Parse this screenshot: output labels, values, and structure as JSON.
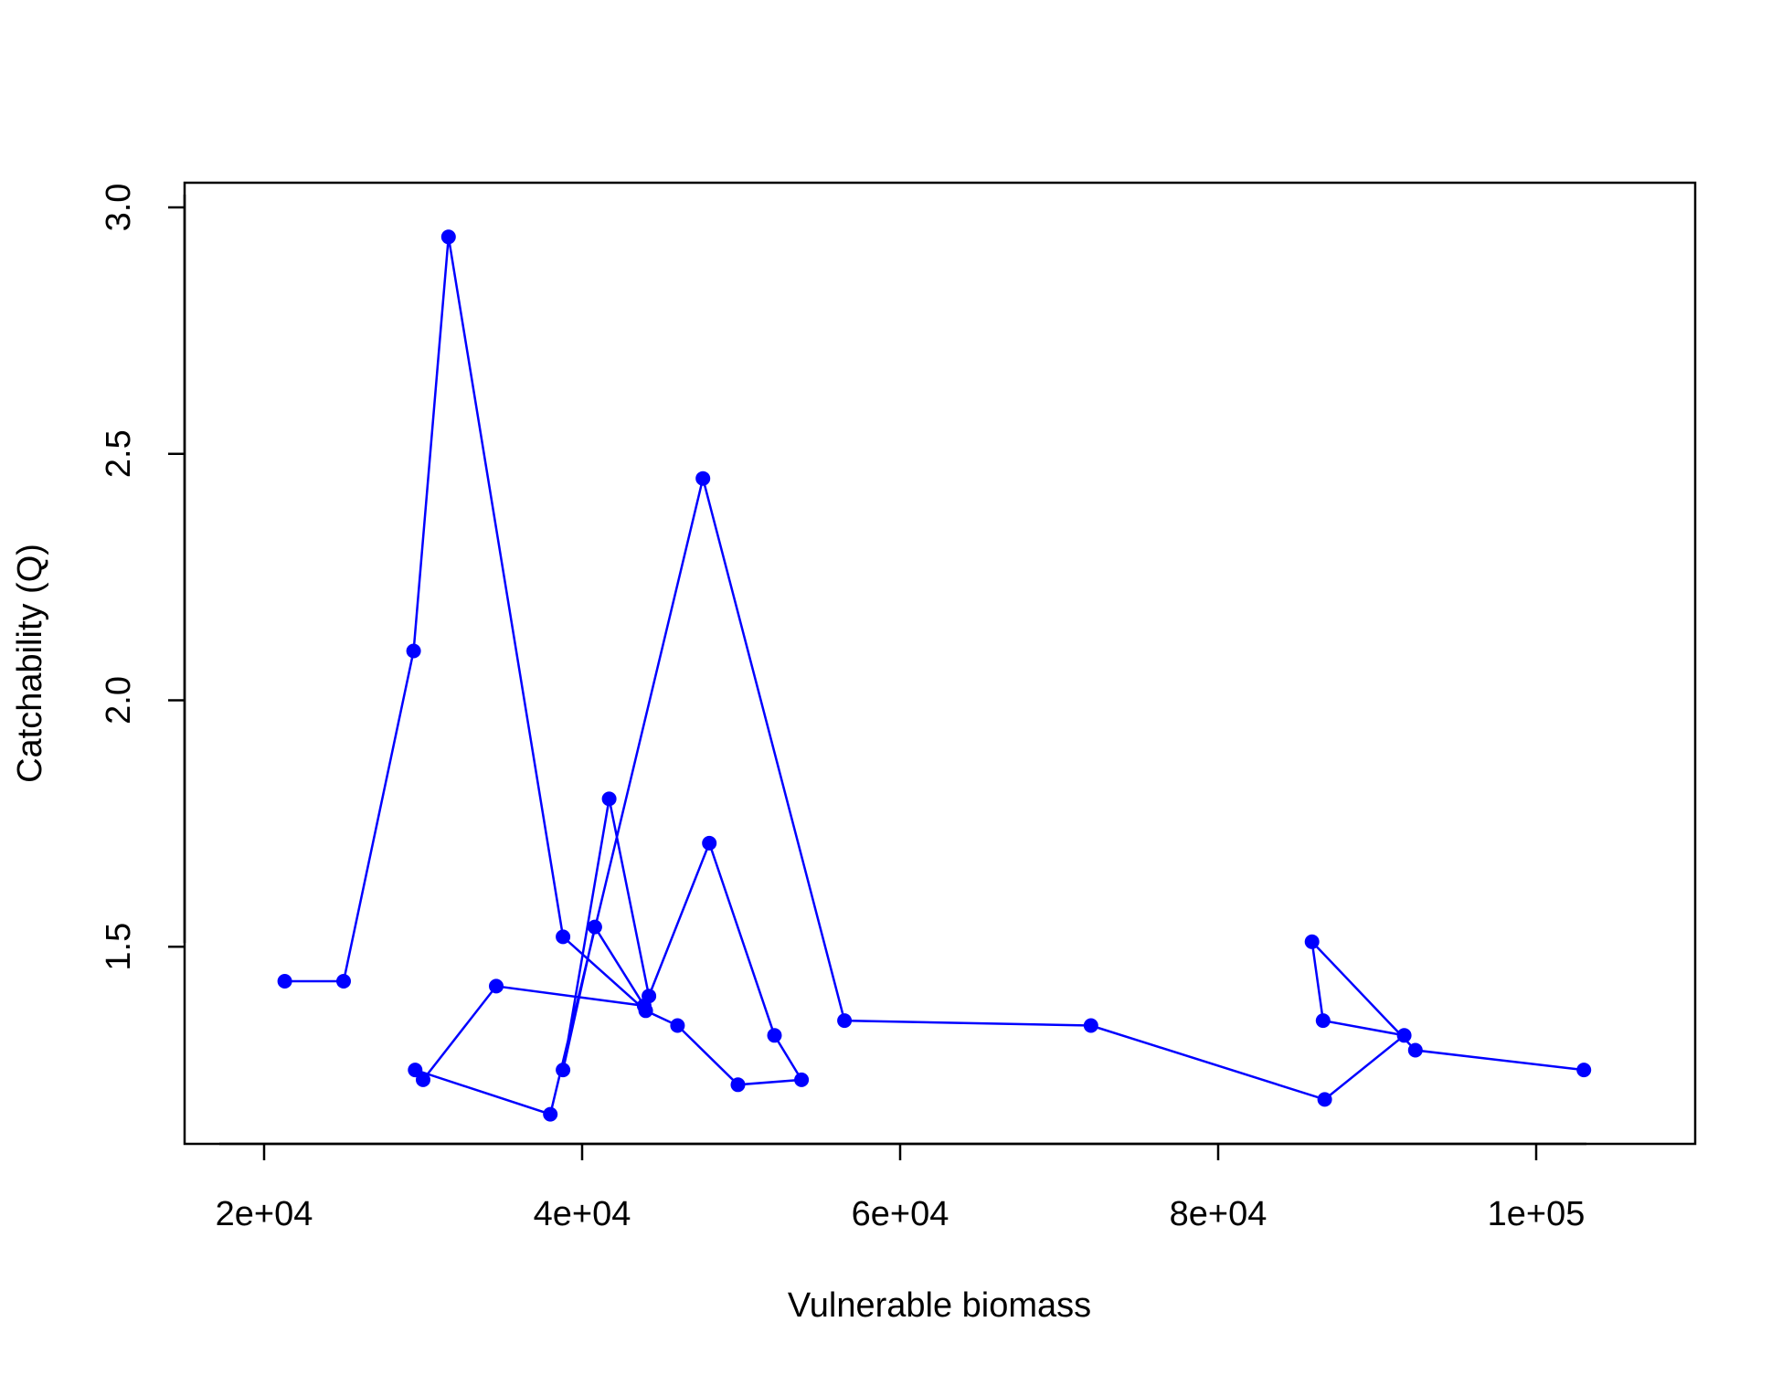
{
  "chart_data": {
    "type": "line",
    "title": "",
    "xlabel": "Vulnerable biomass",
    "ylabel": "Catchability (Q)",
    "xlim": [
      15000,
      110000
    ],
    "ylim": [
      1.1,
      3.05
    ],
    "xticks": [
      20000,
      40000,
      60000,
      80000,
      100000
    ],
    "xtick_labels": [
      "2e+04",
      "4e+04",
      "6e+04",
      "8e+04",
      "1e+05"
    ],
    "yticks": [
      1.5,
      2.0,
      2.5,
      3.0
    ],
    "ytick_labels": [
      "1.5",
      "2.0",
      "2.5",
      "3.0"
    ],
    "grid": false,
    "series": [
      {
        "color": "#0000ff",
        "marker": "filled-circle",
        "x": [
          21300,
          25000,
          29400,
          31600,
          38800,
          44000,
          46000,
          49800,
          53800,
          52100,
          48000,
          44200,
          41700,
          38800,
          40800,
          43900,
          34600,
          30000,
          29500,
          38000,
          47600,
          56500,
          72000,
          86700,
          91700,
          86600,
          85900,
          92400,
          103000
        ],
        "y": [
          1.43,
          1.43,
          2.1,
          2.94,
          1.52,
          1.37,
          1.34,
          1.22,
          1.23,
          1.32,
          1.71,
          1.4,
          1.8,
          1.25,
          1.54,
          1.38,
          1.42,
          1.23,
          1.25,
          1.16,
          2.45,
          1.35,
          1.34,
          1.19,
          1.32,
          1.35,
          1.51,
          1.29,
          1.25
        ]
      }
    ]
  }
}
